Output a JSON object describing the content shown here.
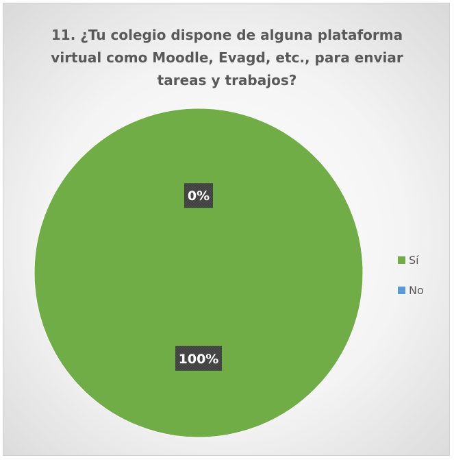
{
  "chart_data": {
    "type": "pie",
    "title": "11. ¿Tu colegio dispone de alguna plataforma virtual como Moodle, Evagd, etc., para enviar tareas y trabajos?",
    "categories": [
      "Sí",
      "No"
    ],
    "values": [
      100,
      0
    ],
    "data_labels": [
      "100%",
      "0%"
    ],
    "colors": [
      "#70AD47",
      "#5B9BD5"
    ],
    "legend_position": "right"
  }
}
